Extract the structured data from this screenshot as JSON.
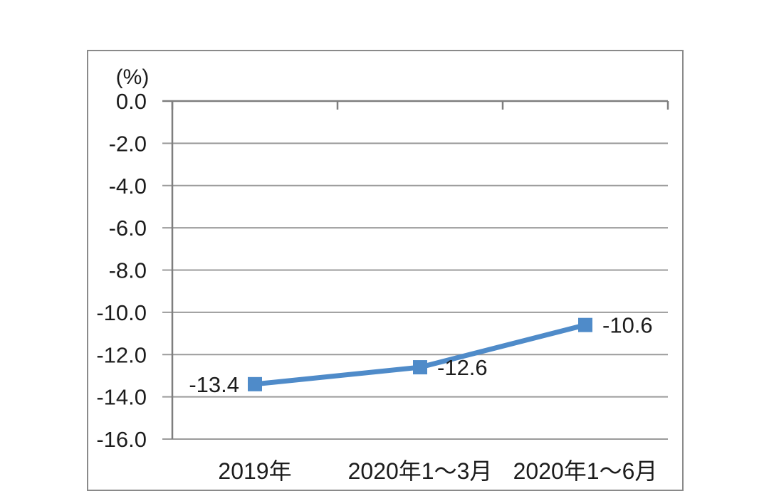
{
  "chart_data": {
    "type": "line",
    "title": "",
    "ylabel": "(%)",
    "xlabel": "",
    "categories": [
      "2019年",
      "2020年1～3月",
      "2020年1～6月"
    ],
    "series": [
      {
        "values": [
          -13.4,
          -12.6,
          -10.6
        ],
        "marker": "square"
      }
    ],
    "data_labels": [
      "-13.4",
      "-12.6",
      "-10.6"
    ],
    "data_label_sides": [
      "left",
      "right",
      "right"
    ],
    "y_ticks": [
      "0.0",
      "-2.0",
      "-4.0",
      "-6.0",
      "-8.0",
      "-10.0",
      "-12.0",
      "-14.0",
      "-16.0"
    ],
    "ylim": [
      -16,
      0
    ],
    "grid": "on",
    "legend": "none"
  },
  "colors": {
    "line": "#4F8BC9",
    "grid": "#9B9B9B",
    "axis": "#7E7E7E",
    "border": "#8A8A8A",
    "text": "#1C1C1C"
  }
}
